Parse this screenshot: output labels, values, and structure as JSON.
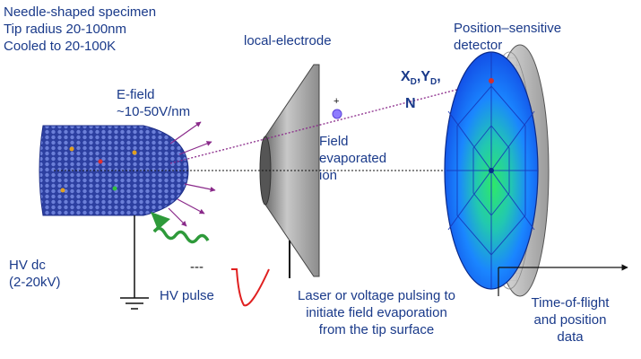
{
  "labels": {
    "specimen_line1": "Needle-shaped specimen",
    "specimen_line2": "Tip radius 20-100nm",
    "specimen_line3": "Cooled to 20-100K",
    "local_electrode": "local-electrode",
    "efield_line1": "E-field",
    "efield_line2": "~10-50V/nm",
    "detector_line1": "Position–sensitive",
    "detector_line2": "detector",
    "xd_yd": "X",
    "xd_sub1": "D",
    "xd_sep": ",Y",
    "yd_sub": "D",
    "xd_tail": ",",
    "n_label": "N",
    "ion_line1": "Field",
    "ion_line2": "evaporated",
    "ion_line3": "ion",
    "plus_sign": "+",
    "hv_dc_line1": "HV dc",
    "hv_dc_line2": "(2-20kV)",
    "hv_pulse": "HV pulse",
    "laser_line1": "Laser or voltage pulsing to",
    "laser_line2": "initiate field evaporation",
    "laser_line3": "from the tip surface",
    "tof_line1": "Time-of-flight",
    "tof_line2": "and position",
    "tof_line3": "data",
    "dashes": "---"
  },
  "colors": {
    "text": "#1a3a8a",
    "specimen": "#2c3fa0",
    "electrode": "#9a9a9a",
    "detector_outer": "#1565ff",
    "detector_center": "#30e060",
    "ion": "#8e7cff",
    "trajectory": "#8a2a8a",
    "laser": "#2e9a3a",
    "pulse": "#e02020"
  }
}
